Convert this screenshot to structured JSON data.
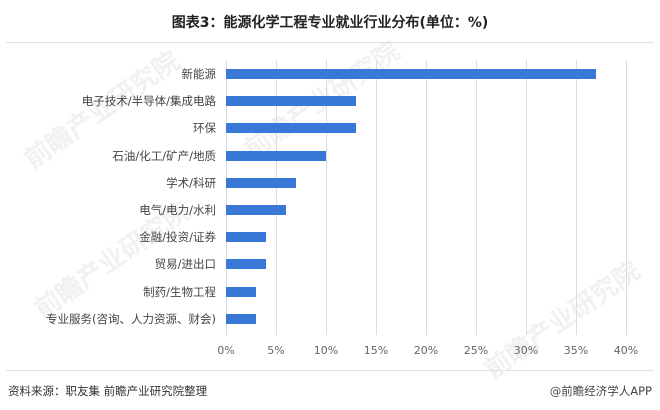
{
  "title": "图表3：能源化学工程专业就业行业分布(单位：%)",
  "footer": {
    "source": "资料来源：职友集 前瞻产业研究院整理",
    "credit": "@前瞻经济学人APP"
  },
  "watermark": "前瞻产业研究院",
  "chart_data": {
    "type": "bar",
    "orientation": "horizontal",
    "title": "图表3：能源化学工程专业就业行业分布(单位：%)",
    "categories": [
      "新能源",
      "电子技术/半导体/集成电路",
      "环保",
      "石油/化工/矿产/地质",
      "学术/科研",
      "电气/电力/水利",
      "金融/投资/证券",
      "贸易/进出口",
      "制药/生物工程",
      "专业服务(咨询、人力资源、财会)"
    ],
    "values": [
      37,
      13,
      13,
      10,
      7,
      6,
      4,
      4,
      3,
      3
    ],
    "xlabel": "",
    "ylabel": "",
    "xlim": [
      0,
      40
    ],
    "xticks": [
      "0%",
      "5%",
      "10%",
      "15%",
      "20%",
      "25%",
      "30%",
      "35%",
      "40%"
    ],
    "grid": true,
    "legend": "none",
    "bar_color": "#3a78d8"
  }
}
